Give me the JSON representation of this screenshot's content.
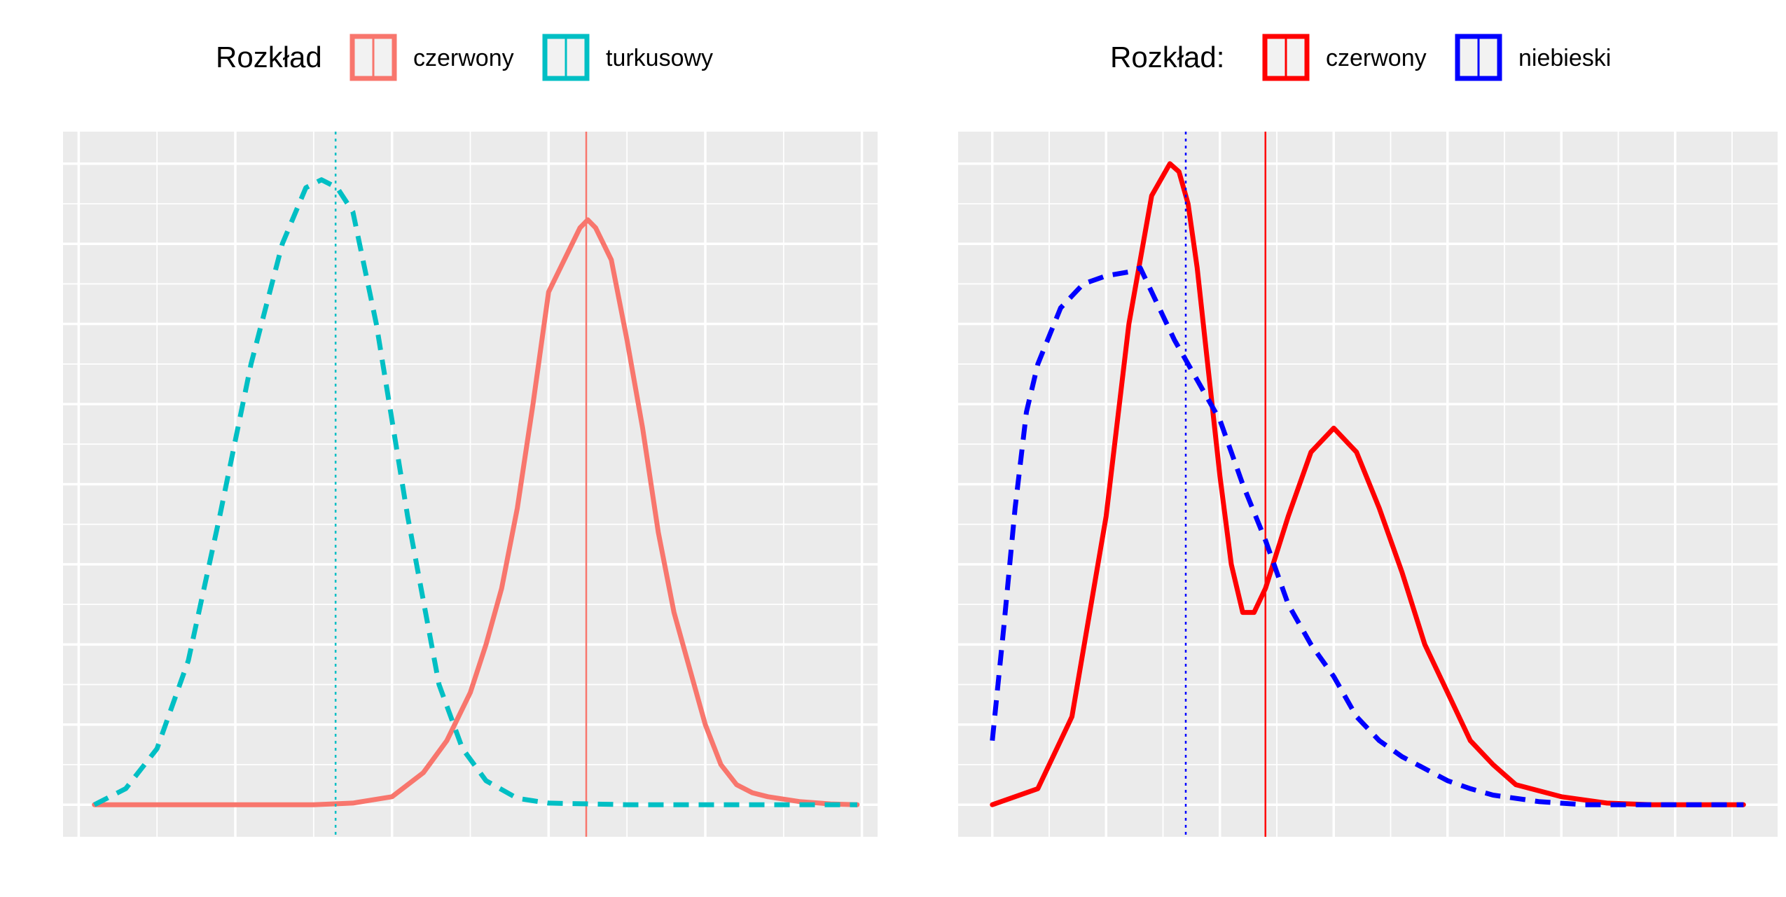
{
  "chart_data": [
    {
      "type": "line",
      "subtype": "density",
      "title": "",
      "xlabel": "",
      "ylabel": "",
      "grid": true,
      "axis_ticks_labels": "none",
      "legend": {
        "title": "Rozkład",
        "position": "top",
        "entries": [
          {
            "label": "czerwony",
            "color": "#F8766D",
            "linetype": "solid"
          },
          {
            "label": "turkusowy",
            "color": "#00BFC4",
            "linetype": "dashed"
          }
        ]
      },
      "xlim": [
        -0.1,
        5.1
      ],
      "ylim": [
        -0.04,
        0.84
      ],
      "series": [
        {
          "name": "czerwony",
          "color": "#F8766D",
          "linetype": "solid",
          "mean": 3.24,
          "x": [
            0.1,
            0.5,
            1.0,
            1.3,
            1.5,
            1.75,
            2.0,
            2.2,
            2.35,
            2.5,
            2.6,
            2.7,
            2.8,
            2.9,
            3.0,
            3.1,
            3.2,
            3.25,
            3.3,
            3.4,
            3.5,
            3.6,
            3.7,
            3.8,
            3.9,
            4.0,
            4.1,
            4.2,
            4.3,
            4.4,
            4.6,
            4.8,
            4.97
          ],
          "y": [
            0.0,
            0.0,
            0.0,
            0.0,
            0.0,
            0.002,
            0.01,
            0.04,
            0.08,
            0.14,
            0.2,
            0.27,
            0.37,
            0.5,
            0.64,
            0.68,
            0.72,
            0.73,
            0.72,
            0.68,
            0.58,
            0.47,
            0.34,
            0.24,
            0.17,
            0.1,
            0.05,
            0.025,
            0.015,
            0.01,
            0.004,
            0.001,
            0.0
          ]
        },
        {
          "name": "turkusowy",
          "color": "#00BFC4",
          "linetype": "dashed",
          "mean": 1.64,
          "x": [
            0.1,
            0.3,
            0.5,
            0.7,
            0.9,
            1.1,
            1.3,
            1.45,
            1.55,
            1.65,
            1.75,
            1.9,
            2.1,
            2.3,
            2.45,
            2.6,
            2.8,
            3.0,
            3.5,
            4.0,
            4.5,
            4.97
          ],
          "y": [
            0.0,
            0.02,
            0.07,
            0.18,
            0.36,
            0.55,
            0.7,
            0.77,
            0.78,
            0.77,
            0.74,
            0.6,
            0.36,
            0.15,
            0.07,
            0.03,
            0.008,
            0.002,
            0.0,
            0.0,
            0.0,
            0.0
          ]
        }
      ]
    },
    {
      "type": "line",
      "subtype": "density",
      "title": "",
      "xlabel": "",
      "ylabel": "",
      "grid": true,
      "axis_ticks_labels": "none",
      "legend": {
        "title": "Rozkład:",
        "position": "top",
        "entries": [
          {
            "label": "czerwony",
            "color": "#FF0000",
            "linetype": "solid"
          },
          {
            "label": "niebieski",
            "color": "#0000FF",
            "linetype": "dashed"
          }
        ]
      },
      "xlim": [
        -0.15,
        3.45
      ],
      "ylim": [
        -0.04,
        0.84
      ],
      "series": [
        {
          "name": "czerwony",
          "color": "#FF0000",
          "linetype": "solid",
          "mean": 1.2,
          "x": [
            0.0,
            0.2,
            0.35,
            0.5,
            0.6,
            0.7,
            0.78,
            0.82,
            0.86,
            0.9,
            0.95,
            1.0,
            1.05,
            1.1,
            1.15,
            1.2,
            1.3,
            1.4,
            1.5,
            1.6,
            1.7,
            1.8,
            1.9,
            2.0,
            2.1,
            2.2,
            2.3,
            2.5,
            2.7,
            2.9,
            3.1,
            3.3
          ],
          "y": [
            0.0,
            0.02,
            0.11,
            0.36,
            0.6,
            0.76,
            0.8,
            0.79,
            0.75,
            0.67,
            0.54,
            0.41,
            0.3,
            0.24,
            0.24,
            0.27,
            0.36,
            0.44,
            0.47,
            0.44,
            0.37,
            0.29,
            0.2,
            0.14,
            0.08,
            0.05,
            0.025,
            0.01,
            0.002,
            0.0,
            0.0,
            0.0
          ]
        },
        {
          "name": "niebieski",
          "color": "#0000FF",
          "linetype": "dashed",
          "mean": 0.85,
          "x": [
            0.0,
            0.05,
            0.1,
            0.15,
            0.2,
            0.3,
            0.4,
            0.5,
            0.6,
            0.65,
            0.7,
            0.8,
            0.9,
            1.0,
            1.1,
            1.2,
            1.3,
            1.4,
            1.5,
            1.6,
            1.7,
            1.8,
            1.9,
            2.0,
            2.1,
            2.2,
            2.4,
            2.6,
            2.8,
            3.0,
            3.2,
            3.3
          ],
          "y": [
            0.08,
            0.22,
            0.37,
            0.49,
            0.55,
            0.62,
            0.65,
            0.66,
            0.665,
            0.67,
            0.64,
            0.58,
            0.53,
            0.48,
            0.4,
            0.33,
            0.25,
            0.2,
            0.16,
            0.11,
            0.08,
            0.06,
            0.045,
            0.03,
            0.02,
            0.012,
            0.004,
            0.0,
            0.0,
            0.0,
            0.0,
            0.0
          ]
        }
      ]
    }
  ]
}
